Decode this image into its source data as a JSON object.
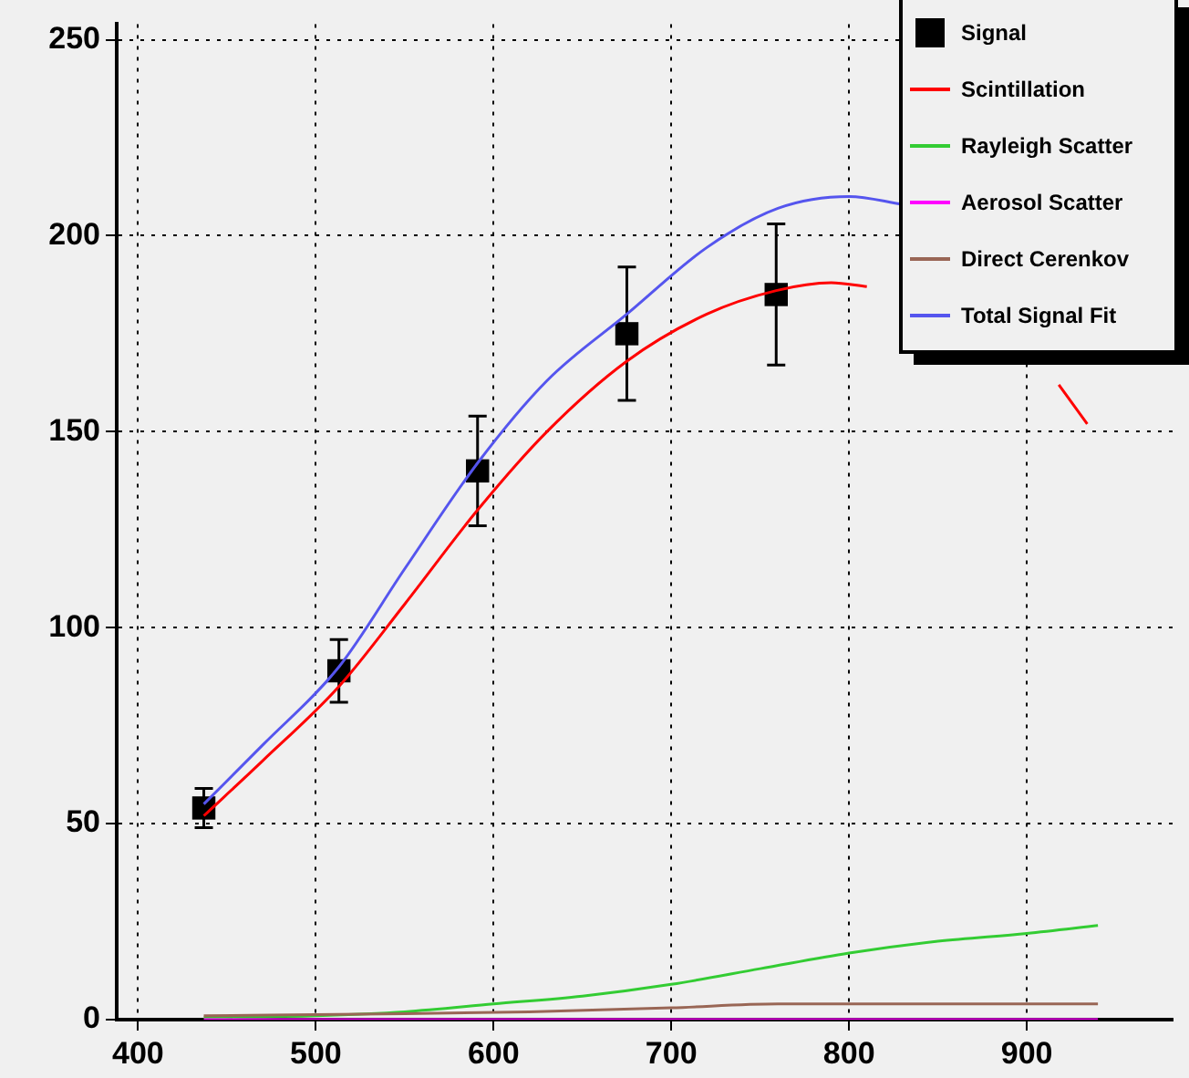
{
  "chart_data": {
    "type": "line",
    "xlim": [
      388,
      982
    ],
    "xticks": [
      400,
      500,
      600,
      700,
      800,
      900
    ],
    "ylim": [
      0,
      254
    ],
    "yticks": [
      0,
      50,
      100,
      150,
      200,
      250
    ],
    "grid": true,
    "legend": "top right",
    "series": [
      {
        "name": "Signal",
        "type": "scatter",
        "marker": "square",
        "color": "#000000",
        "x": [
          437,
          513,
          591,
          675,
          759
        ],
        "values": [
          54,
          89,
          140,
          175,
          185
        ],
        "errors": [
          5,
          8,
          14,
          17,
          18
        ]
      },
      {
        "name": "Scintillation",
        "color": "#ff0000",
        "x": [
          437,
          470,
          513,
          550,
          591,
          630,
          675,
          720,
          759,
          790,
          810,
          830,
          918,
          934
        ],
        "values": [
          52,
          66,
          85,
          106,
          130,
          150,
          168,
          180,
          186,
          188,
          187,
          null,
          162,
          152
        ]
      },
      {
        "name": "Rayleigh Scatter",
        "color": "#33cc33",
        "x": [
          437,
          500,
          550,
          600,
          650,
          700,
          750,
          800,
          850,
          900,
          940
        ],
        "values": [
          0.5,
          1,
          2,
          4,
          6,
          9,
          13,
          17,
          20,
          22,
          24
        ]
      },
      {
        "name": "Aerosol Scatter",
        "color": "#ff00ff",
        "x": [
          437,
          940
        ],
        "values": [
          0,
          0
        ]
      },
      {
        "name": "Direct Cerenkov",
        "color": "#996655",
        "x": [
          437,
          550,
          620,
          700,
          760,
          940
        ],
        "values": [
          1,
          1.5,
          2,
          3,
          4,
          4
        ]
      },
      {
        "name": "Total Signal Fit",
        "color": "#5555ee",
        "x": [
          437,
          470,
          513,
          550,
          591,
          630,
          675,
          720,
          760,
          800,
          830
        ],
        "values": [
          55,
          70,
          90,
          115,
          142,
          163,
          180,
          197,
          207,
          210,
          208
        ]
      }
    ]
  }
}
